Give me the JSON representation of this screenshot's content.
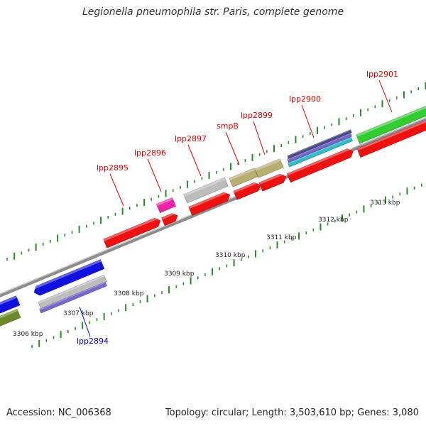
{
  "title": "Legionella pneumophila str. Paris, complete genome",
  "footer": {
    "accession": "Accession: NC_006368",
    "topology": "Topology: circular; Length: 3,503,610 bp; Genes: 3,080"
  },
  "colors": {
    "backbone": "#8c8c8c",
    "tick": "#2a8a2a",
    "label_forward": "#dd0000",
    "label_reverse": "#0000bb",
    "cds_red": "#ee1111",
    "cds_blue": "#1111dd",
    "cds_green": "#33cc33",
    "cds_olive": "#6b8a2a",
    "cds_khaki": "#b8b070",
    "cds_grey": "#bdbdbd",
    "cds_magenta": "#ee22aa",
    "cds_purple": "#7766cc",
    "cds_cyan": "#33bbcc",
    "cds_navy": "#4a4a8a"
  },
  "ticks": [
    "3306 kbp",
    "3307 kbp",
    "3308 kbp",
    "3309 kbp",
    "3310 kbp",
    "3311 kbp",
    "3312 kbp",
    "3313 kbp"
  ],
  "gene_labels": [
    {
      "name": "lpp2894",
      "strand": "reverse"
    },
    {
      "name": "lpp2895",
      "strand": "forward"
    },
    {
      "name": "lpp2896",
      "strand": "forward"
    },
    {
      "name": "lpp2897",
      "strand": "forward"
    },
    {
      "name": "smpB",
      "strand": "forward"
    },
    {
      "name": "lpp2899",
      "strand": "forward"
    },
    {
      "name": "lpp2900",
      "strand": "forward"
    },
    {
      "name": "lpp2901",
      "strand": "forward"
    }
  ]
}
